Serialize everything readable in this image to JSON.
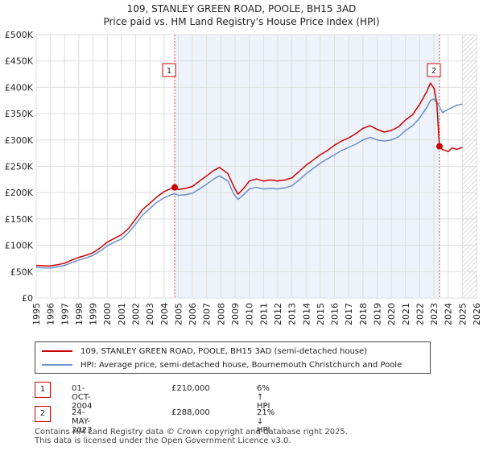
{
  "chart_data": {
    "type": "line",
    "title": "109, STANLEY GREEN ROAD, POOLE, BH15 3AD",
    "subtitle": "Price paid vs. HM Land Registry's House Price Index (HPI)",
    "xlabel": "",
    "ylabel": "",
    "xlim": [
      1995,
      2026
    ],
    "ylim": [
      0,
      500000
    ],
    "yticks": [
      0,
      50000,
      100000,
      150000,
      200000,
      250000,
      300000,
      350000,
      400000,
      450000,
      500000
    ],
    "ytick_labels": [
      "£0",
      "£50K",
      "£100K",
      "£150K",
      "£200K",
      "£250K",
      "£300K",
      "£350K",
      "£400K",
      "£450K",
      "£500K"
    ],
    "xticks": [
      1995,
      1996,
      1997,
      1998,
      1999,
      2000,
      2001,
      2002,
      2003,
      2004,
      2005,
      2006,
      2007,
      2008,
      2009,
      2010,
      2011,
      2012,
      2013,
      2014,
      2015,
      2016,
      2017,
      2018,
      2019,
      2020,
      2021,
      2022,
      2023,
      2024,
      2025,
      2026
    ],
    "xtick_labels": [
      "1995",
      "1996",
      "1997",
      "1998",
      "1999",
      "2000",
      "2001",
      "2002",
      "2003",
      "2004",
      "2005",
      "2006",
      "2007",
      "2008",
      "2009",
      "2010",
      "2011",
      "2012",
      "2013",
      "2014",
      "2015",
      "2016",
      "2017",
      "2018",
      "2019",
      "2020",
      "2021",
      "2022",
      "2023",
      "2024",
      "2025",
      "2026"
    ],
    "grid": true,
    "series": [
      {
        "name": "109, STANLEY GREEN ROAD, POOLE, BH15 3AD (semi-detached house)",
        "color": "#cc0000",
        "x": [
          1995.0,
          1995.5,
          1996.0,
          1996.5,
          1997.0,
          1997.5,
          1998.0,
          1998.5,
          1999.0,
          1999.5,
          2000.0,
          2000.5,
          2001.0,
          2001.5,
          2002.0,
          2002.5,
          2003.0,
          2003.5,
          2004.0,
          2004.5,
          2004.75,
          2005.0,
          2005.5,
          2006.0,
          2006.5,
          2007.0,
          2007.5,
          2007.9,
          2008.5,
          2008.9,
          2009.2,
          2009.6,
          2010.0,
          2010.5,
          2011.0,
          2011.5,
          2012.0,
          2012.5,
          2013.0,
          2013.5,
          2014.0,
          2014.5,
          2015.0,
          2015.5,
          2016.0,
          2016.5,
          2017.0,
          2017.5,
          2018.0,
          2018.5,
          2019.0,
          2019.5,
          2020.0,
          2020.5,
          2021.0,
          2021.5,
          2022.0,
          2022.5,
          2022.75,
          2023.0,
          2023.2,
          2023.39,
          2023.6,
          2024.0,
          2024.3,
          2024.6,
          2025.0
        ],
        "y": [
          62000,
          61000,
          61000,
          63000,
          66000,
          72000,
          77000,
          81000,
          86000,
          95000,
          106000,
          113000,
          120000,
          132000,
          150000,
          168000,
          180000,
          192000,
          202000,
          208000,
          210000,
          206000,
          208000,
          212000,
          222000,
          232000,
          242000,
          248000,
          236000,
          212000,
          197000,
          208000,
          222000,
          226000,
          222000,
          224000,
          222000,
          224000,
          228000,
          240000,
          252000,
          262000,
          272000,
          280000,
          290000,
          298000,
          304000,
          312000,
          322000,
          327000,
          320000,
          315000,
          318000,
          325000,
          338000,
          348000,
          368000,
          392000,
          408000,
          398000,
          370000,
          288000,
          282000,
          278000,
          285000,
          282000,
          286000
        ]
      },
      {
        "name": "HPI: Average price, semi-detached house, Bournemouth Christchurch and Poole",
        "color": "#6a8fc8",
        "x": [
          1995.0,
          1995.5,
          1996.0,
          1996.5,
          1997.0,
          1997.5,
          1998.0,
          1998.5,
          1999.0,
          1999.5,
          2000.0,
          2000.5,
          2001.0,
          2001.5,
          2002.0,
          2002.5,
          2003.0,
          2003.5,
          2004.0,
          2004.5,
          2004.75,
          2005.0,
          2005.5,
          2006.0,
          2006.5,
          2007.0,
          2007.5,
          2007.9,
          2008.5,
          2008.9,
          2009.2,
          2009.6,
          2010.0,
          2010.5,
          2011.0,
          2011.5,
          2012.0,
          2012.5,
          2013.0,
          2013.5,
          2014.0,
          2014.5,
          2015.0,
          2015.5,
          2016.0,
          2016.5,
          2017.0,
          2017.5,
          2018.0,
          2018.5,
          2019.0,
          2019.5,
          2020.0,
          2020.5,
          2021.0,
          2021.5,
          2022.0,
          2022.5,
          2022.75,
          2023.0,
          2023.3,
          2023.6,
          2024.0,
          2024.3,
          2024.6,
          2025.0
        ],
        "y": [
          58000,
          57000,
          57000,
          59000,
          62000,
          67000,
          72000,
          76000,
          81000,
          89000,
          99000,
          106000,
          112000,
          124000,
          140000,
          158000,
          170000,
          182000,
          190000,
          196000,
          198000,
          195000,
          196000,
          199000,
          207000,
          216000,
          226000,
          232000,
          222000,
          198000,
          187000,
          196000,
          207000,
          210000,
          207000,
          208000,
          207000,
          209000,
          213000,
          224000,
          236000,
          246000,
          256000,
          264000,
          272000,
          280000,
          286000,
          292000,
          300000,
          305000,
          300000,
          298000,
          300000,
          306000,
          318000,
          327000,
          342000,
          362000,
          375000,
          378000,
          368000,
          352000,
          358000,
          362000,
          366000,
          368000
        ]
      }
    ],
    "annotations": [
      {
        "label": "1",
        "x": 2004.75,
        "y": 210000
      },
      {
        "label": "2",
        "x": 2023.39,
        "y": 288000
      }
    ],
    "hatched_after": 2025.0
  },
  "transactions": [
    {
      "label": "1",
      "date": "01-OCT-2004",
      "price": "£210,000",
      "hpi": "6% ↑ HPI"
    },
    {
      "label": "2",
      "date": "24-MAY-2023",
      "price": "£288,000",
      "hpi": "21% ↓ HPI"
    }
  ],
  "footer": {
    "line1": "Contains HM Land Registry data © Crown copyright and database right 2025.",
    "line2": "This data is licensed under the Open Government Licence v3.0."
  }
}
